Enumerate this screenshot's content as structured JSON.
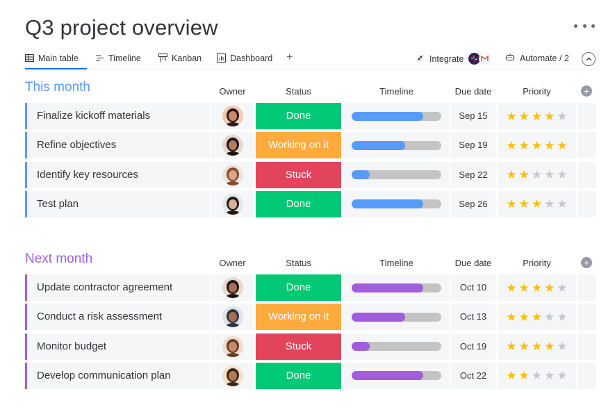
{
  "page": {
    "title": "Q3 project overview"
  },
  "tabs": [
    {
      "label": "Main table",
      "icon": "table-icon",
      "active": true
    },
    {
      "label": "Timeline",
      "icon": "timeline-icon"
    },
    {
      "label": "Kanban",
      "icon": "kanban-icon"
    },
    {
      "label": "Dashboard",
      "icon": "dashboard-icon"
    }
  ],
  "toolbar": {
    "integrate_label": "Integrate",
    "automate_label": "Automate / 2"
  },
  "columns": {
    "owner": "Owner",
    "status": "Status",
    "timeline": "Timeline",
    "due": "Due date",
    "priority": "Priority"
  },
  "status_colors": {
    "Done": "#00c875",
    "Working on it": "#fdab3d",
    "Stuck": "#e2445c"
  },
  "groups": [
    {
      "title": "This month",
      "color": "#579bfc",
      "rows": [
        {
          "name": "Finalize kickoff materials",
          "status": "Done",
          "timeline_progress": 0.8,
          "due": "Sep 15",
          "priority": 4,
          "avatar_bg": "#f4c9b5",
          "avatar_skin": "#c98a6c",
          "avatar_hair": "#2b1b14"
        },
        {
          "name": "Refine objectives",
          "status": "Working on it",
          "timeline_progress": 0.6,
          "due": "Sep 19",
          "priority": 5,
          "avatar_bg": "#e8d7cc",
          "avatar_skin": "#b57c5c",
          "avatar_hair": "#1e1410"
        },
        {
          "name": "Identify key resources",
          "status": "Stuck",
          "timeline_progress": 0.2,
          "due": "Sep 22",
          "priority": 2,
          "avatar_bg": "#ece4dc",
          "avatar_skin": "#d9a58b",
          "avatar_hair": "#8b4a2b"
        },
        {
          "name": "Test plan",
          "status": "Done",
          "timeline_progress": 0.8,
          "due": "Sep 26",
          "priority": 3,
          "avatar_bg": "#e3e6ea",
          "avatar_skin": "#d8b095",
          "avatar_hair": "#1f1a17"
        }
      ]
    },
    {
      "title": "Next month",
      "color": "#a25ddc",
      "rows": [
        {
          "name": "Update contractor agreement",
          "status": "Done",
          "timeline_progress": 0.8,
          "due": "Oct 10",
          "priority": 4,
          "avatar_bg": "#e9d9cf",
          "avatar_skin": "#a8704f",
          "avatar_hair": "#211612"
        },
        {
          "name": "Conduct a risk assessment",
          "status": "Working on it",
          "timeline_progress": 0.6,
          "due": "Oct 13",
          "priority": 3,
          "avatar_bg": "#dfe3e8",
          "avatar_skin": "#a56f50",
          "avatar_hair": "#2d3540"
        },
        {
          "name": "Monitor budget",
          "status": "Stuck",
          "timeline_progress": 0.2,
          "due": "Oct 19",
          "priority": 4,
          "avatar_bg": "#f0dccd",
          "avatar_skin": "#c78b67",
          "avatar_hair": "#6b3b22"
        },
        {
          "name": "Develop communication plan",
          "status": "Done",
          "timeline_progress": 0.8,
          "due": "Oct 22",
          "priority": 2,
          "avatar_bg": "#f3e2c7",
          "avatar_skin": "#b07a52",
          "avatar_hair": "#3a261a"
        }
      ]
    }
  ]
}
